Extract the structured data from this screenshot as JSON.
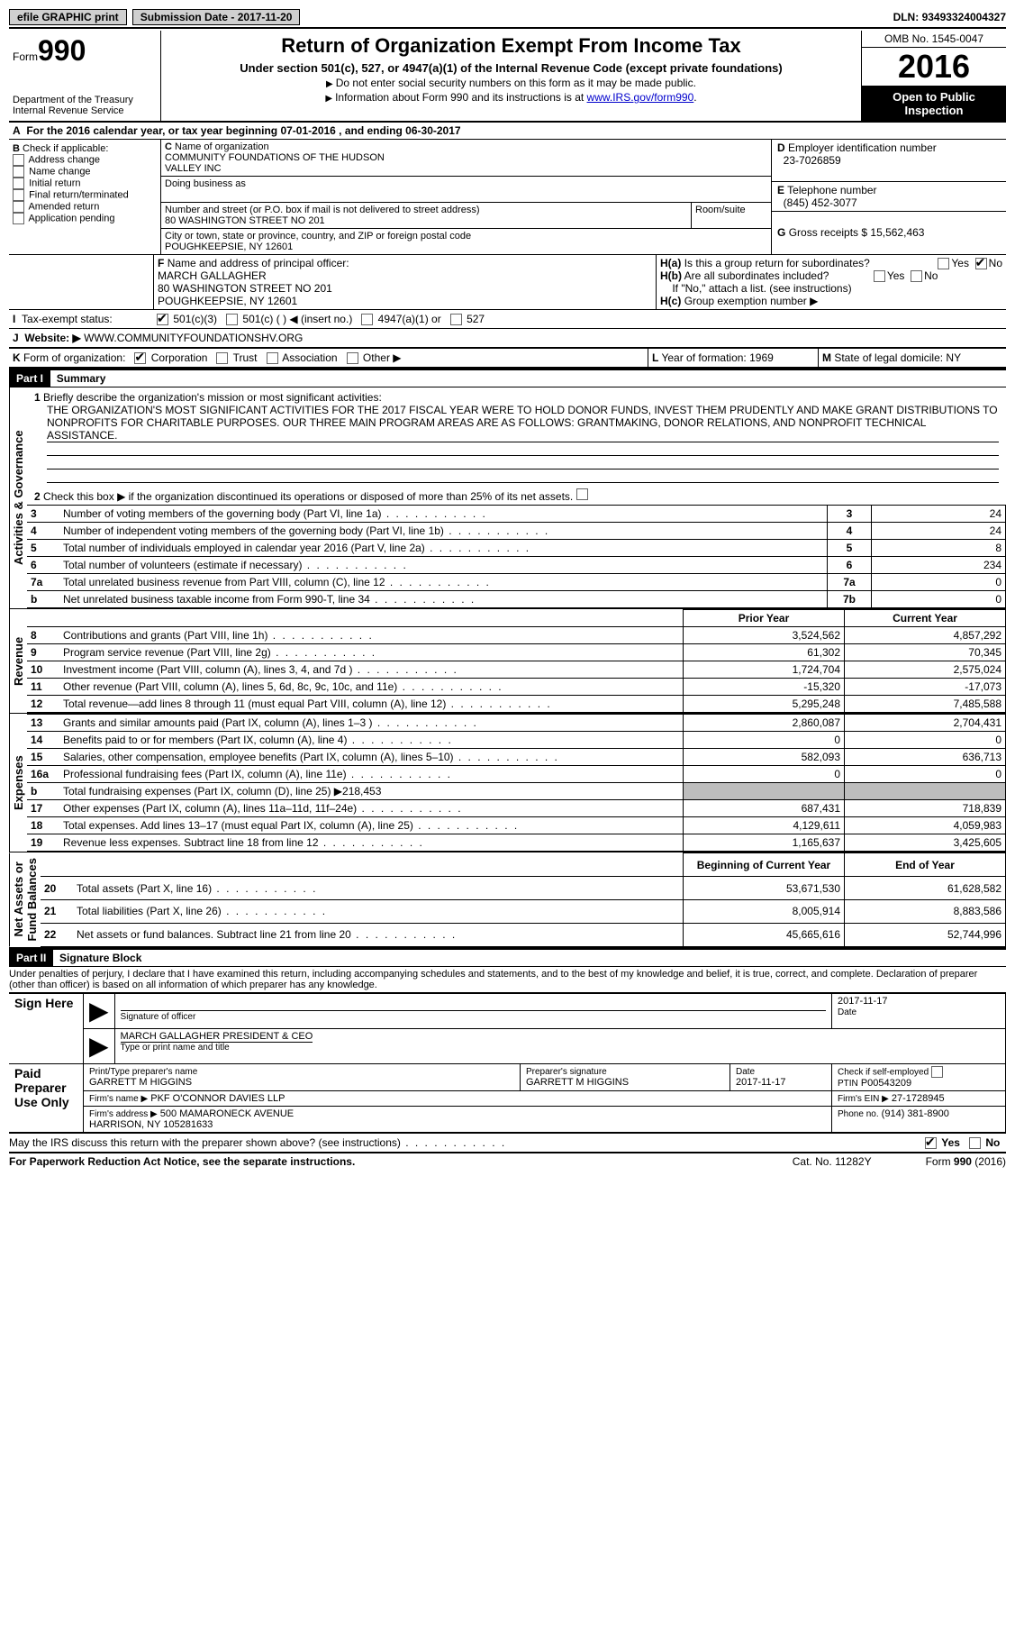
{
  "top": {
    "efile": "efile GRAPHIC print",
    "subdate_label": "Submission Date - ",
    "subdate": "2017-11-20",
    "dln_label": "DLN: ",
    "dln": "93493324004327"
  },
  "header": {
    "form_prefix": "Form",
    "form_no": "990",
    "dept": "Department of the Treasury\nInternal Revenue Service",
    "title": "Return of Organization Exempt From Income Tax",
    "subtitle": "Under section 501(c), 527, or 4947(a)(1) of the Internal Revenue Code (except private foundations)",
    "note1": "Do not enter social security numbers on this form as it may be made public.",
    "note2_a": "Information about Form 990 and its instructions is at ",
    "note2_link": "www.IRS.gov/form990",
    "omb": "OMB No. 1545-0047",
    "year": "2016",
    "open": "Open to Public Inspection"
  },
  "A": {
    "text": "For the 2016 calendar year, or tax year beginning 07-01-2016   , and ending 06-30-2017"
  },
  "B": {
    "label": "Check if applicable:",
    "items": [
      "Address change",
      "Name change",
      "Initial return",
      "Final return/terminated",
      "Amended return",
      "Application pending"
    ]
  },
  "C": {
    "name_label": "Name of organization",
    "name": "COMMUNITY FOUNDATIONS OF THE HUDSON\nVALLEY INC",
    "dba_label": "Doing business as",
    "street_label": "Number and street (or P.O. box if mail is not delivered to street address)",
    "room_label": "Room/suite",
    "street": "80 WASHINGTON STREET NO 201",
    "city_label": "City or town, state or province, country, and ZIP or foreign postal code",
    "city": "POUGHKEEPSIE, NY  12601"
  },
  "D": {
    "label": "Employer identification number",
    "val": "23-7026859"
  },
  "E": {
    "label": "Telephone number",
    "val": "(845) 452-3077"
  },
  "G": {
    "label": "Gross receipts $",
    "val": "15,562,463"
  },
  "F": {
    "label": "Name and address of principal officer:",
    "val": "MARCH GALLAGHER\n80 WASHINGTON STREET NO 201\nPOUGHKEEPSIE, NY  12601"
  },
  "H": {
    "a": "Is this a group return for subordinates?",
    "b": "Are all subordinates included?",
    "b_note": "If \"No,\" attach a list. (see instructions)",
    "c": "Group exemption number ▶",
    "yes": "Yes",
    "no": "No"
  },
  "I": {
    "label": "Tax-exempt status:",
    "opts": [
      "501(c)(3)",
      "501(c) (   ) ◀ (insert no.)",
      "4947(a)(1) or",
      "527"
    ]
  },
  "J": {
    "label": "Website: ▶",
    "val": "WWW.COMMUNITYFOUNDATIONSHV.ORG"
  },
  "K": {
    "label": "Form of organization:",
    "opts": [
      "Corporation",
      "Trust",
      "Association",
      "Other ▶"
    ]
  },
  "L": {
    "label": "Year of formation:",
    "val": "1969"
  },
  "M": {
    "label": "State of legal domicile:",
    "val": "NY"
  },
  "part1": {
    "title": "Part I",
    "name": "Summary",
    "vlabel_gov": "Activities & Governance",
    "vlabel_rev": "Revenue",
    "vlabel_exp": "Expenses",
    "vlabel_net": "Net Assets or\nFund Balances",
    "line1_label": "Briefly describe the organization's mission or most significant activities:",
    "line1_text": "THE ORGANIZATION'S MOST SIGNIFICANT ACTIVITIES FOR THE 2017 FISCAL YEAR WERE TO HOLD DONOR FUNDS, INVEST THEM PRUDENTLY AND MAKE GRANT DISTRIBUTIONS TO NONPROFITS FOR CHARITABLE PURPOSES. OUR THREE MAIN PROGRAM AREAS ARE AS FOLLOWS: GRANTMAKING, DONOR RELATIONS, AND NONPROFIT TECHNICAL ASSISTANCE.",
    "line2": "Check this box ▶       if the organization discontinued its operations or disposed of more than 25% of its net assets.",
    "rows": [
      {
        "n": "3",
        "label": "Number of voting members of the governing body (Part VI, line 1a)",
        "box": "3",
        "val": "24"
      },
      {
        "n": "4",
        "label": "Number of independent voting members of the governing body (Part VI, line 1b)",
        "box": "4",
        "val": "24"
      },
      {
        "n": "5",
        "label": "Total number of individuals employed in calendar year 2016 (Part V, line 2a)",
        "box": "5",
        "val": "8"
      },
      {
        "n": "6",
        "label": "Total number of volunteers (estimate if necessary)",
        "box": "6",
        "val": "234"
      },
      {
        "n": "7a",
        "label": "Total unrelated business revenue from Part VIII, column (C), line 12",
        "box": "7a",
        "val": "0"
      },
      {
        "n": "b",
        "label": "Net unrelated business taxable income from Form 990-T, line 34",
        "box": "7b",
        "val": "0"
      }
    ],
    "pyr": "Prior Year",
    "cyr": "Current Year",
    "rev_rows": [
      {
        "n": "8",
        "label": "Contributions and grants (Part VIII, line 1h)",
        "p": "3,524,562",
        "c": "4,857,292"
      },
      {
        "n": "9",
        "label": "Program service revenue (Part VIII, line 2g)",
        "p": "61,302",
        "c": "70,345"
      },
      {
        "n": "10",
        "label": "Investment income (Part VIII, column (A), lines 3, 4, and 7d )",
        "p": "1,724,704",
        "c": "2,575,024"
      },
      {
        "n": "11",
        "label": "Other revenue (Part VIII, column (A), lines 5, 6d, 8c, 9c, 10c, and 11e)",
        "p": "-15,320",
        "c": "-17,073"
      },
      {
        "n": "12",
        "label": "Total revenue—add lines 8 through 11 (must equal Part VIII, column (A), line 12)",
        "p": "5,295,248",
        "c": "7,485,588"
      }
    ],
    "exp_rows": [
      {
        "n": "13",
        "label": "Grants and similar amounts paid (Part IX, column (A), lines 1–3 )",
        "p": "2,860,087",
        "c": "2,704,431"
      },
      {
        "n": "14",
        "label": "Benefits paid to or for members (Part IX, column (A), line 4)",
        "p": "0",
        "c": "0"
      },
      {
        "n": "15",
        "label": "Salaries, other compensation, employee benefits (Part IX, column (A), lines 5–10)",
        "p": "582,093",
        "c": "636,713"
      },
      {
        "n": "16a",
        "label": "Professional fundraising fees (Part IX, column (A), line 11e)",
        "p": "0",
        "c": "0"
      },
      {
        "n": "b",
        "label": "Total fundraising expenses (Part IX, column (D), line 25) ▶218,453",
        "p": "",
        "c": "",
        "grey": true
      },
      {
        "n": "17",
        "label": "Other expenses (Part IX, column (A), lines 11a–11d, 11f–24e)",
        "p": "687,431",
        "c": "718,839"
      },
      {
        "n": "18",
        "label": "Total expenses. Add lines 13–17 (must equal Part IX, column (A), line 25)",
        "p": "4,129,611",
        "c": "4,059,983"
      },
      {
        "n": "19",
        "label": "Revenue less expenses. Subtract line 18 from line 12",
        "p": "1,165,637",
        "c": "3,425,605"
      }
    ],
    "boy": "Beginning of Current Year",
    "eoy": "End of Year",
    "net_rows": [
      {
        "n": "20",
        "label": "Total assets (Part X, line 16)",
        "p": "53,671,530",
        "c": "61,628,582"
      },
      {
        "n": "21",
        "label": "Total liabilities (Part X, line 26)",
        "p": "8,005,914",
        "c": "8,883,586"
      },
      {
        "n": "22",
        "label": "Net assets or fund balances. Subtract line 21 from line 20",
        "p": "45,665,616",
        "c": "52,744,996"
      }
    ]
  },
  "part2": {
    "title": "Part II",
    "name": "Signature Block",
    "decl": "Under penalties of perjury, I declare that I have examined this return, including accompanying schedules and statements, and to the best of my knowledge and belief, it is true, correct, and complete. Declaration of preparer (other than officer) is based on all information of which preparer has any knowledge.",
    "sign_here": "Sign Here",
    "sig_officer": "Signature of officer",
    "date": "Date",
    "sig_date": "2017-11-17",
    "officer": "MARCH GALLAGHER PRESIDENT & CEO",
    "type_name": "Type or print name and title",
    "paid": "Paid Preparer Use Only",
    "prep_name_label": "Print/Type preparer's name",
    "prep_name": "GARRETT M HIGGINS",
    "prep_sig_label": "Preparer's signature",
    "prep_sig": "GARRETT M HIGGINS",
    "prep_date": "2017-11-17",
    "self_emp": "Check        if self-employed",
    "ptin_label": "PTIN",
    "ptin": "P00543209",
    "firm_name_label": "Firm's name    ▶",
    "firm_name": "PKF O'CONNOR DAVIES LLP",
    "firm_ein_label": "Firm's EIN ▶",
    "firm_ein": "27-1728945",
    "firm_addr_label": "Firm's address ▶",
    "firm_addr": "500 MAMARONECK AVENUE\nHARRISON, NY  105281633",
    "phone_label": "Phone no.",
    "phone": "(914) 381-8900",
    "discuss": "May the IRS discuss this return with the preparer shown above? (see instructions)",
    "yes": "Yes",
    "no": "No"
  },
  "footer": {
    "pra": "For Paperwork Reduction Act Notice, see the separate instructions.",
    "cat": "Cat. No. 11282Y",
    "form": "Form 990 (2016)"
  }
}
